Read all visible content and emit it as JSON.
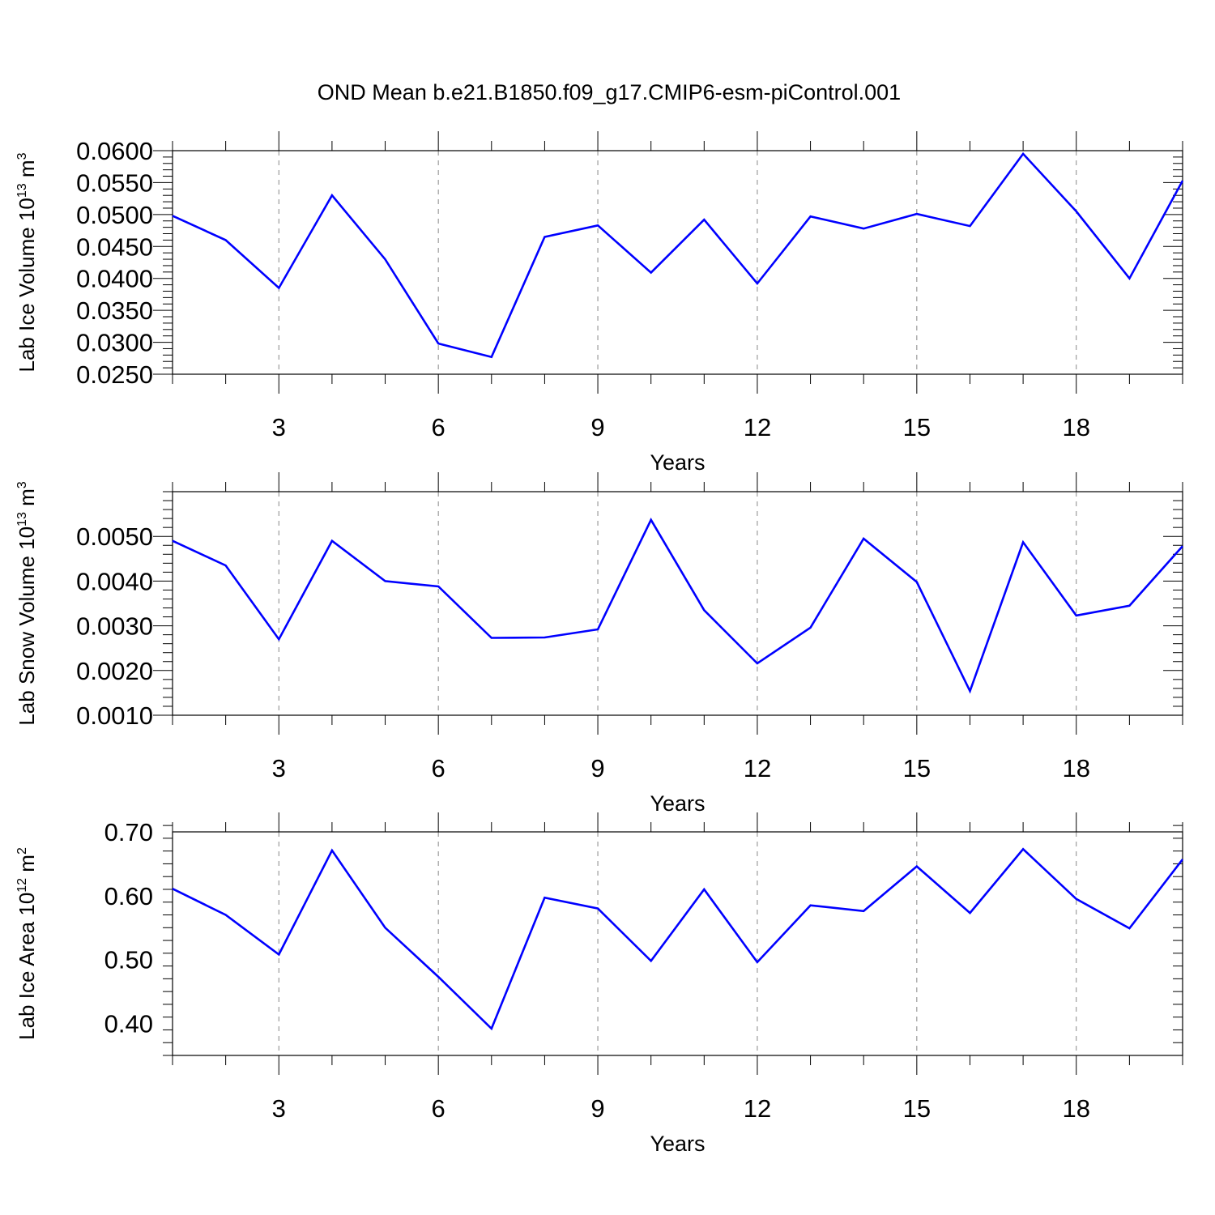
{
  "title": "OND Mean b.e21.B1850.f09_g17.CMIP6-esm-piControl.001",
  "colors": {
    "series": "#0000ff",
    "grid": "#888888",
    "axis": "#000000",
    "background": "#ffffff"
  },
  "chart_data": [
    {
      "type": "line",
      "id": "ice-volume",
      "title": "",
      "xlabel": "Years",
      "ylabel": {
        "text": "Lab Ice Volume 10",
        "exp": "13",
        "unit": " m",
        "unit_exp": "3"
      },
      "xlim": [
        1,
        20
      ],
      "ylim": [
        0.025,
        0.06
      ],
      "xticks": [
        3,
        6,
        9,
        12,
        15,
        18
      ],
      "xtick_labels": [
        "3",
        "6",
        "9",
        "12",
        "15",
        "18"
      ],
      "yticks": [
        0.025,
        0.03,
        0.035,
        0.04,
        0.045,
        0.05,
        0.055,
        0.06
      ],
      "ytick_labels": [
        "0.0250",
        "0.0300",
        "0.0350",
        "0.0400",
        "0.0450",
        "0.0500",
        "0.0550",
        "0.0600"
      ],
      "y_minor_step": 0.001,
      "grid": "vertical dashed at major x ticks",
      "x": [
        1,
        2,
        3,
        4,
        5,
        6,
        7,
        8,
        9,
        10,
        11,
        12,
        13,
        14,
        15,
        16,
        17,
        18,
        19,
        20
      ],
      "values": [
        0.0498,
        0.046,
        0.0385,
        0.053,
        0.043,
        0.0298,
        0.0277,
        0.0465,
        0.0483,
        0.0409,
        0.0492,
        0.0392,
        0.0497,
        0.0478,
        0.0501,
        0.0482,
        0.0595,
        0.0505,
        0.04,
        0.0553
      ]
    },
    {
      "type": "line",
      "id": "snow-volume",
      "title": "",
      "xlabel": "Years",
      "ylabel": {
        "text": "Lab Snow Volume 10",
        "exp": "13",
        "unit": " m",
        "unit_exp": "3"
      },
      "xlim": [
        1,
        20
      ],
      "ylim": [
        0.001,
        0.006
      ],
      "xticks": [
        3,
        6,
        9,
        12,
        15,
        18
      ],
      "xtick_labels": [
        "3",
        "6",
        "9",
        "12",
        "15",
        "18"
      ],
      "yticks": [
        0.001,
        0.002,
        0.003,
        0.004,
        0.005
      ],
      "ytick_labels": [
        "0.0010",
        "0.0020",
        "0.0030",
        "0.0040",
        "0.0050"
      ],
      "y_minor_step": 0.0002,
      "grid": "vertical dashed at major x ticks",
      "x": [
        1,
        2,
        3,
        4,
        5,
        6,
        7,
        8,
        9,
        10,
        11,
        12,
        13,
        14,
        15,
        16,
        17,
        18,
        19,
        20
      ],
      "values": [
        0.0049,
        0.00435,
        0.0027,
        0.0049,
        0.004,
        0.00388,
        0.00273,
        0.00274,
        0.00292,
        0.00537,
        0.00335,
        0.00216,
        0.00296,
        0.00495,
        0.00398,
        0.00154,
        0.00487,
        0.00323,
        0.00345,
        0.00478
      ]
    },
    {
      "type": "line",
      "id": "ice-area",
      "title": "",
      "xlabel": "Years",
      "ylabel": {
        "text": "Lab Ice Area 10",
        "exp": "12",
        "unit": " m",
        "unit_exp": "2"
      },
      "xlim": [
        1,
        20
      ],
      "ylim": [
        0.35,
        0.7
      ],
      "xticks": [
        3,
        6,
        9,
        12,
        15,
        18
      ],
      "xtick_labels": [
        "3",
        "6",
        "9",
        "12",
        "15",
        "18"
      ],
      "yticks": [
        0.4,
        0.5,
        0.6,
        0.7
      ],
      "ytick_labels": [
        "0.40",
        "0.50",
        "0.60",
        "0.70"
      ],
      "y_minor_step": 0.02,
      "grid": "vertical dashed at major x ticks",
      "x": [
        1,
        2,
        3,
        4,
        5,
        6,
        7,
        8,
        9,
        10,
        11,
        12,
        13,
        14,
        15,
        16,
        17,
        18,
        19,
        20
      ],
      "values": [
        0.611,
        0.57,
        0.508,
        0.671,
        0.55,
        0.473,
        0.392,
        0.597,
        0.58,
        0.498,
        0.61,
        0.496,
        0.585,
        0.576,
        0.646,
        0.573,
        0.673,
        0.595,
        0.549,
        0.657
      ]
    }
  ]
}
